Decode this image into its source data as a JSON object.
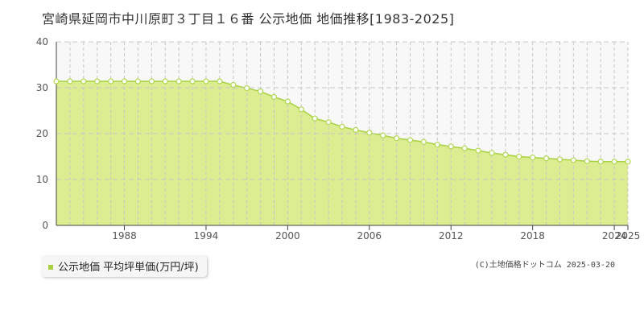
{
  "title": "宮崎県延岡市中川原町３丁目１６番 公示地価 地価推移[1983-2025]",
  "legend": {
    "label": "公示地価 平均坪単価(万円/坪)"
  },
  "copyright": "(C)土地価格ドットコム 2025-03-20",
  "colors": {
    "fill": "#dcec90",
    "line": "#a8d040",
    "point_fill": "#ffffff",
    "point_stroke": "#b0d850",
    "grid": "#c8c8c8",
    "upper_band": "#f8f8f8"
  },
  "chart_data": {
    "type": "area",
    "title": "宮崎県延岡市中川原町３丁目１６番 公示地価 地価推移[1983-2025]",
    "xlabel": "",
    "ylabel": "",
    "xlim": [
      1983,
      2025
    ],
    "ylim": [
      0,
      40
    ],
    "y_ticks": [
      0,
      10,
      20,
      30,
      40
    ],
    "x_tick_labels": [
      1988,
      1994,
      2000,
      2006,
      2012,
      2018,
      2024,
      2025
    ],
    "grid": true,
    "legend_position": "bottom-left",
    "series": [
      {
        "name": "公示地価 平均坪単価(万円/坪)",
        "x": [
          1983,
          1984,
          1985,
          1986,
          1987,
          1988,
          1989,
          1990,
          1991,
          1992,
          1993,
          1994,
          1995,
          1996,
          1997,
          1998,
          1999,
          2000,
          2001,
          2002,
          2003,
          2004,
          2005,
          2006,
          2007,
          2008,
          2009,
          2010,
          2011,
          2012,
          2013,
          2014,
          2015,
          2016,
          2017,
          2018,
          2019,
          2020,
          2021,
          2022,
          2023,
          2024,
          2025
        ],
        "values": [
          31.4,
          31.4,
          31.4,
          31.4,
          31.4,
          31.4,
          31.4,
          31.4,
          31.4,
          31.4,
          31.4,
          31.4,
          31.4,
          30.6,
          29.9,
          29.2,
          28.0,
          27.0,
          25.3,
          23.3,
          22.5,
          21.5,
          20.8,
          20.2,
          19.6,
          19.0,
          18.6,
          18.2,
          17.6,
          17.2,
          16.8,
          16.3,
          15.8,
          15.4,
          15.0,
          14.8,
          14.6,
          14.4,
          14.2,
          14.0,
          13.9,
          13.9,
          13.9
        ]
      }
    ]
  }
}
